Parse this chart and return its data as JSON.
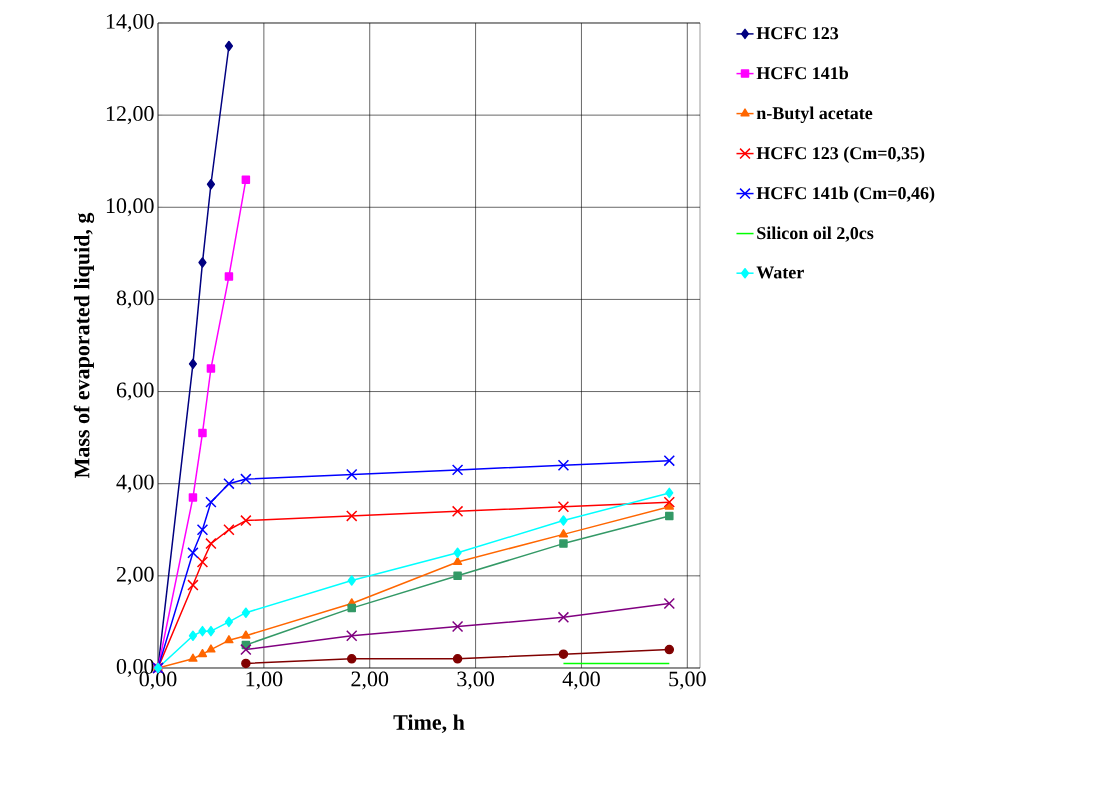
{
  "chart_data": {
    "type": "line",
    "xlabel": "Time, h",
    "ylabel": "Mass of evaporated liquid, g",
    "xlim": [
      0,
      5.12
    ],
    "ylim": [
      0,
      14
    ],
    "xticks": [
      {
        "value": 0,
        "label": "0,00"
      },
      {
        "value": 1,
        "label": "1,00"
      },
      {
        "value": 2,
        "label": "2,00"
      },
      {
        "value": 3,
        "label": "3,00"
      },
      {
        "value": 4,
        "label": "4,00"
      },
      {
        "value": 5,
        "label": "5,00"
      }
    ],
    "yticks": [
      {
        "value": 0,
        "label": "0,00"
      },
      {
        "value": 2,
        "label": "2,00"
      },
      {
        "value": 4,
        "label": "4,00"
      },
      {
        "value": 6,
        "label": "6,00"
      },
      {
        "value": 8,
        "label": "8,00"
      },
      {
        "value": 10,
        "label": "10,00"
      },
      {
        "value": 12,
        "label": "12,00"
      },
      {
        "value": 14,
        "label": "14,00"
      }
    ],
    "grid": true,
    "legend": "right",
    "line_style": "solid",
    "series": [
      {
        "name": "HCFC 123",
        "color": "#000080",
        "marker": "diamond",
        "x": [
          0,
          0.33,
          0.42,
          0.5,
          0.67
        ],
        "values": [
          0,
          6.6,
          8.8,
          10.5,
          13.5
        ]
      },
      {
        "name": "HCFC 141b",
        "color": "#ff00ff",
        "marker": "square",
        "x": [
          0,
          0.33,
          0.42,
          0.5,
          0.67,
          0.83
        ],
        "values": [
          0,
          3.7,
          5.1,
          6.5,
          8.5,
          10.6
        ]
      },
      {
        "name": "n-Butyl acetate",
        "color": "#ff6600",
        "marker": "triangle",
        "x": [
          0,
          0.33,
          0.42,
          0.5,
          0.67,
          0.83,
          1.83,
          2.83,
          3.83,
          4.83
        ],
        "values": [
          0,
          0.2,
          0.3,
          0.4,
          0.6,
          0.7,
          1.4,
          2.3,
          2.9,
          3.5
        ]
      },
      {
        "color": "#339966",
        "marker": "square",
        "x": [
          0.83,
          1.83,
          2.83,
          3.83,
          4.83
        ],
        "values": [
          0.5,
          1.3,
          2.0,
          2.7,
          3.3
        ]
      },
      {
        "color": "#800080",
        "marker": "cross",
        "x": [
          0.83,
          1.83,
          2.83,
          3.83,
          4.83
        ],
        "values": [
          0.4,
          0.7,
          0.9,
          1.1,
          1.4
        ]
      },
      {
        "color": "#800000",
        "marker": "circle",
        "x": [
          0.83,
          1.83,
          2.83,
          3.83,
          4.83
        ],
        "values": [
          0.1,
          0.2,
          0.2,
          0.3,
          0.4
        ]
      },
      {
        "name": "HCFC 123 (Cm=0,35)",
        "color": "#ff0000",
        "marker": "cross",
        "x": [
          0,
          0.33,
          0.42,
          0.5,
          0.67,
          0.83,
          1.83,
          2.83,
          3.83,
          4.83
        ],
        "values": [
          0,
          1.8,
          2.3,
          2.7,
          3.0,
          3.2,
          3.3,
          3.4,
          3.5,
          3.6
        ]
      },
      {
        "name": "HCFC 141b (Cm=0,46)",
        "color": "#0000ff",
        "marker": "cross",
        "x": [
          0,
          0.33,
          0.42,
          0.5,
          0.67,
          0.83,
          1.83,
          2.83,
          3.83,
          4.83
        ],
        "values": [
          0,
          2.5,
          3.0,
          3.6,
          4.0,
          4.1,
          4.2,
          4.3,
          4.4,
          4.5
        ]
      },
      {
        "name": "Silicon oil 2,0cs",
        "color": "#00ff00",
        "marker": "none",
        "x": [
          3.83,
          4.83
        ],
        "values": [
          0.1,
          0.1
        ]
      },
      {
        "name": "Water",
        "color": "#00ffff",
        "marker": "diamond",
        "x": [
          0,
          0.33,
          0.42,
          0.5,
          0.67,
          0.83,
          1.83,
          2.83,
          3.83,
          4.83
        ],
        "values": [
          0,
          0.7,
          0.8,
          0.8,
          1.0,
          1.2,
          1.9,
          2.5,
          3.2,
          3.8
        ]
      }
    ]
  }
}
